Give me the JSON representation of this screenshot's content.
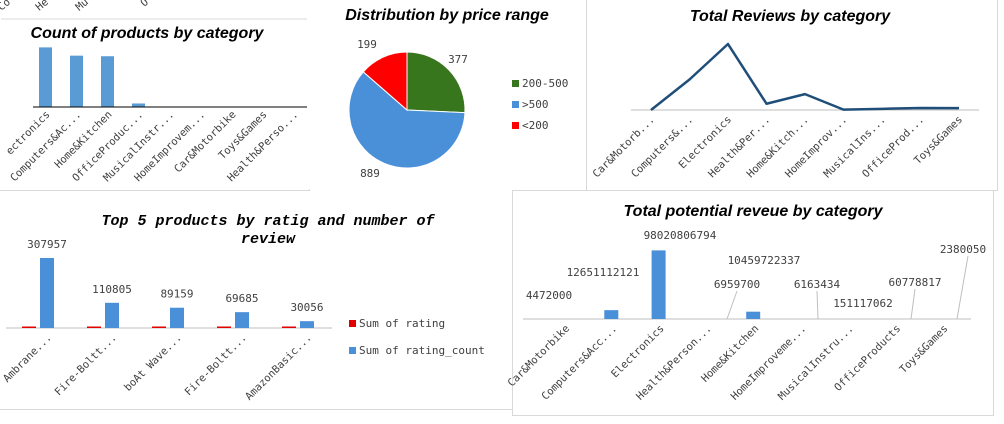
{
  "chart_data": [
    {
      "id": "count",
      "type": "bar",
      "title": "Count of products by category",
      "top_partial_labels": [
        "Co",
        "He",
        "Mu",
        "O"
      ],
      "categories": [
        "Electronics",
        "Computers&Ac...",
        "Home&Kitchen",
        "OfficeProduc...",
        "MusicalInstr...",
        "HomeImprovem...",
        "Car&Motorbike",
        "Toys&Games",
        "Health&Perso..."
      ],
      "tick_labels": [
        "ectronics",
        "Computers&Ac...",
        "Home&Kitchen",
        "OfficeProduc...",
        "MusicalInstr...",
        "HomeImprovem...",
        "Car&Motorbike",
        "Toys&Games",
        "Health&Perso..."
      ],
      "values": [
        526,
        453,
        448,
        31,
        2,
        2,
        1,
        1,
        1
      ],
      "ylim": [
        0,
        600
      ],
      "colors": {
        "bar": "#5b9bd5",
        "axis": "#000000"
      }
    },
    {
      "id": "price",
      "type": "pie",
      "title": "Distribution by price range",
      "labels": [
        "200-500",
        ">500",
        "<200"
      ],
      "values": [
        377,
        889,
        199
      ],
      "colors": [
        "#38761d",
        "#4a90d9",
        "#ff0000"
      ],
      "legend": "right"
    },
    {
      "id": "reviews",
      "type": "line",
      "title": "Total Reviews by category",
      "categories": [
        "Car&Motorb...",
        "Computers&...",
        "Electronics",
        "Health&Per...",
        "Home&Kitch...",
        "HomeImprov...",
        "MusicalIns...",
        "OfficeProd...",
        "Toys&Games"
      ],
      "values": [
        1200,
        7300000,
        15800000,
        1500000,
        3800000,
        90000,
        280000,
        480000,
        450000
      ],
      "ylim": [
        0,
        17000000
      ],
      "colors": {
        "line": "#1f4e79",
        "axis": "#bfbfbf"
      }
    },
    {
      "id": "top5",
      "type": "bar",
      "title": "Top 5 products by ratig and number of review",
      "title_lines": [
        "Top 5 products by ratig and number of",
        "review"
      ],
      "categories": [
        "Ambrane...",
        "Fire-Boltt...",
        "boAt Wave...",
        "Fire-Boltt...",
        "AmazonBasic..."
      ],
      "series": [
        {
          "name": "Sum of rating",
          "values": [
            4.1,
            4.2,
            4.1,
            4.1,
            4.4
          ],
          "color": "#e00000"
        },
        {
          "name": "Sum of rating_count",
          "values": [
            307957,
            110805,
            89159,
            69685,
            30056
          ],
          "color": "#4a90d9"
        }
      ],
      "data_labels": [
        "307957",
        "110805",
        "89159",
        "69685",
        "30056"
      ],
      "ylim": [
        0,
        330000
      ],
      "legend": "right"
    },
    {
      "id": "revenue",
      "type": "bar",
      "title": "Total potential reveue by category",
      "categories": [
        "Car&Motorbike",
        "Computers&Acc...",
        "Electronics",
        "Health&Person...",
        "Home&Kitchen",
        "HomeImproveme...",
        "MusicalInstru...",
        "OfficeProducts",
        "Toys&Games"
      ],
      "values": [
        4472000,
        12651112121,
        98020806794,
        6959700,
        10459722337,
        6163434,
        151117062,
        60778817,
        2380050
      ],
      "data_labels": [
        "4472000",
        "12651112121",
        "98020806794",
        "6959700",
        "10459722337",
        "6163434",
        "151117062",
        "60778817",
        "2380050"
      ],
      "ylim": [
        0,
        100000000000
      ],
      "colors": {
        "bar": "#4a90d9",
        "axis": "#bfbfbf",
        "leader": "#bfbfbf"
      }
    }
  ]
}
